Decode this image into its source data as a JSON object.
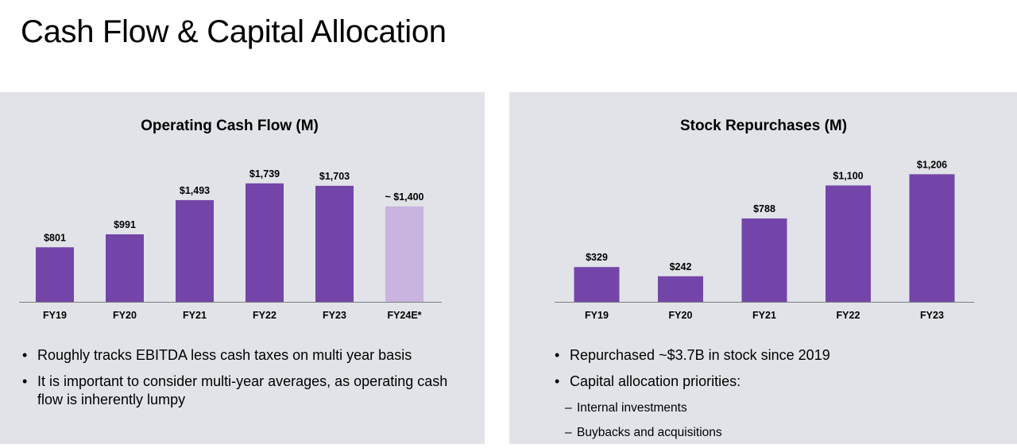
{
  "page": {
    "title": "Cash Flow & Capital Allocation"
  },
  "colors": {
    "bar": "#7445a8",
    "bar_estimate": "#c9b3df",
    "panel_bg": "#e1e3e8",
    "axis": "#7f7f7f"
  },
  "left_panel": {
    "bullets": [
      {
        "text": "Roughly tracks EBITDA less cash taxes on multi year basis",
        "sub": false
      },
      {
        "text": "It is important to consider multi-year averages, as operating cash flow is inherently lumpy",
        "sub": false
      }
    ]
  },
  "right_panel": {
    "bullets": [
      {
        "text": "Repurchased ~$3.7B in stock since 2019",
        "sub": false
      },
      {
        "text": "Capital allocation priorities:",
        "sub": false
      },
      {
        "text": "Internal investments",
        "sub": true
      },
      {
        "text": "Buybacks and acquisitions",
        "sub": true
      }
    ]
  },
  "chart_data": [
    {
      "type": "bar",
      "title": "Operating Cash Flow (M)",
      "categories": [
        "FY19",
        "FY20",
        "FY21",
        "FY22",
        "FY23",
        "FY24E*"
      ],
      "values": [
        801,
        991,
        1493,
        1739,
        1703,
        1400
      ],
      "data_labels": [
        "$801",
        "$991",
        "$1,493",
        "$1,739",
        "$1,703",
        "~ $1,400"
      ],
      "estimate_flags": [
        false,
        false,
        false,
        false,
        false,
        true
      ],
      "ylim": [
        0,
        1800
      ],
      "grid": false,
      "legend": "none"
    },
    {
      "type": "bar",
      "title": "Stock Repurchases (M)",
      "categories": [
        "FY19",
        "FY20",
        "FY21",
        "FY22",
        "FY23"
      ],
      "values": [
        329,
        242,
        788,
        1100,
        1206
      ],
      "data_labels": [
        "$329",
        "$242",
        "$788",
        "$1,100",
        "$1,206"
      ],
      "estimate_flags": [
        false,
        false,
        false,
        false,
        false
      ],
      "ylim": [
        0,
        1400
      ],
      "grid": false,
      "legend": "none"
    }
  ]
}
